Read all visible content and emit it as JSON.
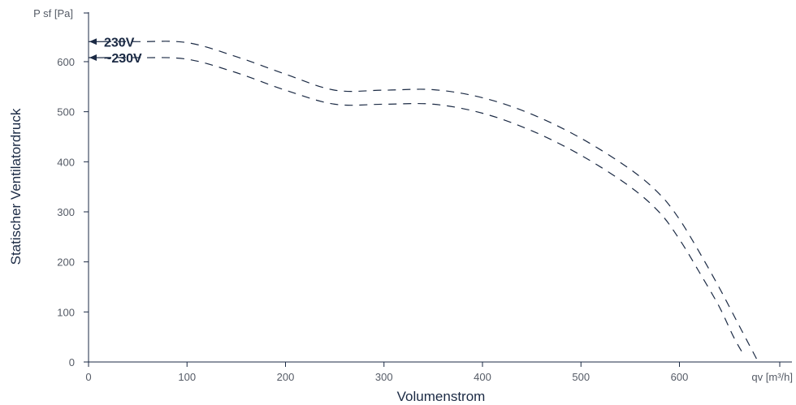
{
  "chart_data": {
    "type": "line",
    "xlabel": "Volumenstrom",
    "ylabel": "Statischer Ventilatordruck",
    "x_unit": "qv [m³/h]",
    "y_unit": "P sf [Pa]",
    "xlim": [
      0,
      710
    ],
    "ylim": [
      0,
      700
    ],
    "x_ticks": [
      0,
      100,
      200,
      300,
      400,
      500,
      600
    ],
    "y_ticks": [
      0,
      100,
      200,
      300,
      400,
      500,
      600
    ],
    "grid": false,
    "colors": {
      "axis": "#1b2a44",
      "series": "#1b2a44",
      "tick_label": "#555b66"
    },
    "series": [
      {
        "name": "230V",
        "x": [
          0,
          50,
          100,
          150,
          200,
          250,
          300,
          350,
          400,
          450,
          500,
          550,
          580,
          600,
          620,
          640,
          660,
          680
        ],
        "y": [
          640,
          640,
          638,
          610,
          575,
          543,
          543,
          544,
          528,
          495,
          447,
          385,
          335,
          285,
          220,
          150,
          75,
          0
        ]
      },
      {
        "name": "~230V",
        "x": [
          0,
          50,
          100,
          150,
          200,
          250,
          300,
          350,
          400,
          450,
          500,
          550,
          580,
          600,
          620,
          640,
          655,
          665
        ],
        "y": [
          608,
          608,
          605,
          578,
          543,
          515,
          515,
          515,
          497,
          462,
          413,
          350,
          298,
          245,
          180,
          112,
          50,
          15
        ]
      }
    ]
  }
}
